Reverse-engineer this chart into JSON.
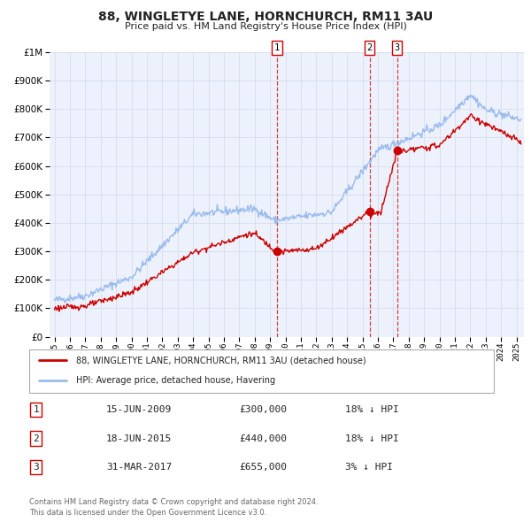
{
  "title": "88, WINGLETYE LANE, HORNCHURCH, RM11 3AU",
  "subtitle": "Price paid vs. HM Land Registry's House Price Index (HPI)",
  "legend_label_red": "88, WINGLETYE LANE, HORNCHURCH, RM11 3AU (detached house)",
  "legend_label_blue": "HPI: Average price, detached house, Havering",
  "footer_line1": "Contains HM Land Registry data © Crown copyright and database right 2024.",
  "footer_line2": "This data is licensed under the Open Government Licence v3.0.",
  "transactions": [
    {
      "num": 1,
      "date": "15-JUN-2009",
      "price": "£300,000",
      "pct": "18% ↓ HPI",
      "x_year": 2009.46
    },
    {
      "num": 2,
      "date": "18-JUN-2015",
      "price": "£440,000",
      "pct": "18% ↓ HPI",
      "x_year": 2015.46
    },
    {
      "num": 3,
      "date": "31-MAR-2017",
      "price": "£655,000",
      "pct": "3% ↓ HPI",
      "x_year": 2017.25
    }
  ],
  "transaction_marker_values": [
    300000,
    440000,
    655000
  ],
  "yticks": [
    0,
    100000,
    200000,
    300000,
    400000,
    500000,
    600000,
    700000,
    800000,
    900000,
    1000000
  ],
  "xlim_start": 1994.7,
  "xlim_end": 2025.5,
  "grid_color": "#d8dff0",
  "plot_background": "#edf1fb",
  "red_line_color": "#cc0000",
  "blue_line_color": "#99bbee",
  "marker_color": "#cc0000",
  "vline_color": "#cc0000"
}
